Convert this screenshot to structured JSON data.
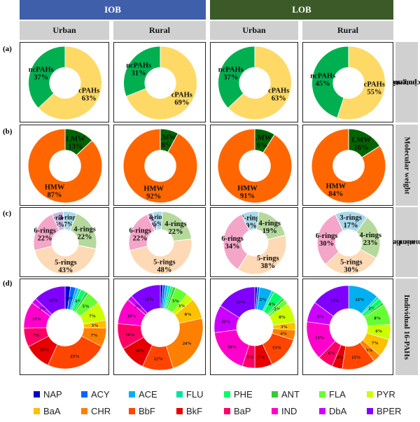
{
  "headers": {
    "iob": "IOB",
    "lob": "LOB",
    "urban": "Urban",
    "rural": "Rural"
  },
  "row_labels": [
    "(a)",
    "(b)",
    "(c)",
    "(d)"
  ],
  "side_labels": [
    [
      "Carcinogenic",
      "potential"
    ],
    [
      "Molecular weight"
    ],
    [
      "Aromatic ring",
      "number"
    ],
    [
      "Individual 16-PAHs"
    ]
  ],
  "colors": {
    "iob_header": "#3f5fab",
    "lob_header": "#3b5a28",
    "subheader": "#d0d0d0",
    "ncPAHs": "#00b050",
    "cPAHs": "#ffd966",
    "LMW": "#006400",
    "HMW": "#ff6600",
    "2-rings": "#c6b7e2",
    "3-rings": "#a8d8ea",
    "4-rings": "#b5d99c",
    "5-rings": "#fdd9b5",
    "6-rings": "#f4a6c8"
  },
  "legend": [
    {
      "name": "NAP",
      "color": "#0000cc"
    },
    {
      "name": "ACY",
      "color": "#0066ff"
    },
    {
      "name": "ACE",
      "color": "#00b0f0"
    },
    {
      "name": "FLU",
      "color": "#00e5a0"
    },
    {
      "name": "PHE",
      "color": "#00ff66"
    },
    {
      "name": "ANT",
      "color": "#33cc33"
    },
    {
      "name": "FLA",
      "color": "#66ff33"
    },
    {
      "name": "PYR",
      "color": "#ccff00"
    },
    {
      "name": "BaA",
      "color": "#ffc000"
    },
    {
      "name": "CHR",
      "color": "#ff7f00"
    },
    {
      "name": "BbF",
      "color": "#ff4500"
    },
    {
      "name": "BkF",
      "color": "#e60000"
    },
    {
      "name": "BaP",
      "color": "#ff0066"
    },
    {
      "name": "IND",
      "color": "#ff00cc"
    },
    {
      "name": "DbA",
      "color": "#cc00ff"
    },
    {
      "name": "BPER",
      "color": "#7f00ff"
    }
  ],
  "chart_data": [
    {
      "type": "donut",
      "row": "(a)",
      "group": "IOB",
      "site": "Urban",
      "slices": [
        {
          "name": "cPAHs",
          "value": 63,
          "label": "63%"
        },
        {
          "name": "ncPAHs",
          "value": 37,
          "label": "37%"
        }
      ]
    },
    {
      "type": "donut",
      "row": "(a)",
      "group": "IOB",
      "site": "Rural",
      "slices": [
        {
          "name": "cPAHs",
          "value": 69,
          "label": "69%"
        },
        {
          "name": "ncPAHs",
          "value": 31,
          "label": "31%"
        }
      ]
    },
    {
      "type": "donut",
      "row": "(a)",
      "group": "LOB",
      "site": "Urban",
      "slices": [
        {
          "name": "cPAHs",
          "value": 63,
          "label": "63%"
        },
        {
          "name": "ncPAHs",
          "value": 37,
          "label": "37%"
        }
      ]
    },
    {
      "type": "donut",
      "row": "(a)",
      "group": "LOB",
      "site": "Rural",
      "slices": [
        {
          "name": "cPAHs",
          "value": 55,
          "label": "55%"
        },
        {
          "name": "ncPAHs",
          "value": 45,
          "label": "45%"
        }
      ]
    },
    {
      "type": "donut",
      "row": "(b)",
      "group": "IOB",
      "site": "Urban",
      "slices": [
        {
          "name": "LMW",
          "value": 13,
          "label": "13%"
        },
        {
          "name": "HMW",
          "value": 87,
          "label": "87%"
        }
      ]
    },
    {
      "type": "donut",
      "row": "(b)",
      "group": "IOB",
      "site": "Rural",
      "slices": [
        {
          "name": "LMW",
          "value": 8,
          "label": "8%"
        },
        {
          "name": "HMW",
          "value": 92,
          "label": "92%"
        }
      ]
    },
    {
      "type": "donut",
      "row": "(b)",
      "group": "LOB",
      "site": "Urban",
      "slices": [
        {
          "name": "LMW",
          "value": 9,
          "label": "9%"
        },
        {
          "name": "HMW",
          "value": 91,
          "label": "91%"
        }
      ]
    },
    {
      "type": "donut",
      "row": "(b)",
      "group": "LOB",
      "site": "Rural",
      "slices": [
        {
          "name": "LMW",
          "value": 16,
          "label": "16%"
        },
        {
          "name": "HMW",
          "value": 84,
          "label": "84%"
        }
      ]
    },
    {
      "type": "donut",
      "row": "(c)",
      "group": "IOB",
      "site": "Urban",
      "slices": [
        {
          "name": "2-rings",
          "value": 6,
          "label": "6%"
        },
        {
          "name": "3-rings",
          "value": 7,
          "label": "7%"
        },
        {
          "name": "4-rings",
          "value": 22,
          "label": "22%"
        },
        {
          "name": "5-rings",
          "value": 43,
          "label": "43%"
        },
        {
          "name": "6-rings",
          "value": 22,
          "label": "22%"
        }
      ]
    },
    {
      "type": "donut",
      "row": "(c)",
      "group": "IOB",
      "site": "Rural",
      "slices": [
        {
          "name": "2-rings",
          "value": 3,
          "label": "3%"
        },
        {
          "name": "3-rings",
          "value": 5,
          "label": "5%"
        },
        {
          "name": "4-rings",
          "value": 22,
          "label": "22%"
        },
        {
          "name": "5-rings",
          "value": 48,
          "label": "48%"
        },
        {
          "name": "6-rings",
          "value": 22,
          "label": "22%"
        }
      ]
    },
    {
      "type": "donut",
      "row": "(c)",
      "group": "LOB",
      "site": "Urban",
      "slices": [
        {
          "name": "3-rings",
          "value": 9,
          "label": "9%"
        },
        {
          "name": "4-rings",
          "value": 19,
          "label": "19%"
        },
        {
          "name": "5-rings",
          "value": 38,
          "label": "38%"
        },
        {
          "name": "6-rings",
          "value": 34,
          "label": "34%"
        }
      ]
    },
    {
      "type": "donut",
      "row": "(c)",
      "group": "LOB",
      "site": "Rural",
      "slices": [
        {
          "name": "3-rings",
          "value": 17,
          "label": "17%"
        },
        {
          "name": "4-rings",
          "value": 23,
          "label": "23%"
        },
        {
          "name": "5-rings",
          "value": 30,
          "label": "30%"
        },
        {
          "name": "6-rings",
          "value": 30,
          "label": "30%"
        }
      ]
    },
    {
      "type": "donut",
      "row": "(d)",
      "group": "IOB",
      "site": "Urban",
      "slices": [
        {
          "name": "NAP",
          "value": 2,
          "label": "2%"
        },
        {
          "name": "ACY",
          "value": 2,
          "label": "2%"
        },
        {
          "name": "ACE",
          "value": 1,
          "label": "1%"
        },
        {
          "name": "FLU",
          "value": 1,
          "label": "1%"
        },
        {
          "name": "PHE",
          "value": 2,
          "label": "2%"
        },
        {
          "name": "ANT",
          "value": 1,
          "label": "1%"
        },
        {
          "name": "FLA",
          "value": 5,
          "label": "5%"
        },
        {
          "name": "PYR",
          "value": 7,
          "label": "7%"
        },
        {
          "name": "BaA",
          "value": 3,
          "label": "3%"
        },
        {
          "name": "CHR",
          "value": 7,
          "label": "7%"
        },
        {
          "name": "BbF",
          "value": 23,
          "label": "23%"
        },
        {
          "name": "BkF",
          "value": 10,
          "label": "10%"
        },
        {
          "name": "BaP",
          "value": 7,
          "label": "7%"
        },
        {
          "name": "IND",
          "value": 10,
          "label": "10%"
        },
        {
          "name": "DbA",
          "value": 2,
          "label": "2%"
        },
        {
          "name": "BPER",
          "value": 12,
          "label": "12%"
        }
      ]
    },
    {
      "type": "donut",
      "row": "(d)",
      "group": "IOB",
      "site": "Rural",
      "slices": [
        {
          "name": "NAP",
          "value": 1,
          "label": "1%"
        },
        {
          "name": "ACY",
          "value": 1,
          "label": "1%"
        },
        {
          "name": "ACE",
          "value": 1,
          "label": "1%"
        },
        {
          "name": "FLU",
          "value": 1,
          "label": "1%"
        },
        {
          "name": "PHE",
          "value": 1,
          "label": "1%"
        },
        {
          "name": "ANT",
          "value": 1,
          "label": "1%"
        },
        {
          "name": "FLA",
          "value": 5,
          "label": "5%"
        },
        {
          "name": "PYR",
          "value": 3,
          "label": "3%"
        },
        {
          "name": "BaA",
          "value": 8,
          "label": "8%"
        },
        {
          "name": "CHR",
          "value": 24,
          "label": "24%"
        },
        {
          "name": "BbF",
          "value": 12,
          "label": "12%"
        },
        {
          "name": "BkF",
          "value": 10,
          "label": "10%"
        },
        {
          "name": "BaP",
          "value": 10,
          "label": "10%"
        },
        {
          "name": "IND",
          "value": 10,
          "label": "10%"
        },
        {
          "name": "DbA",
          "value": 2,
          "label": "2%"
        },
        {
          "name": "BPER",
          "value": 12,
          "label": "12%"
        }
      ]
    },
    {
      "type": "donut",
      "row": "(d)",
      "group": "LOB",
      "site": "Urban",
      "slices": [
        {
          "name": "NAP",
          "value": 1,
          "label": "1%"
        },
        {
          "name": "ACY",
          "value": 1,
          "label": "1%"
        },
        {
          "name": "ACE",
          "value": 5,
          "label": "5%"
        },
        {
          "name": "FLU",
          "value": 1,
          "label": "1%"
        },
        {
          "name": "PHE",
          "value": 4,
          "label": "4%"
        },
        {
          "name": "ANT",
          "value": 1,
          "label": "1%"
        },
        {
          "name": "FLA",
          "value": 2,
          "label": "2%"
        },
        {
          "name": "PYR",
          "value": 8,
          "label": "8%"
        },
        {
          "name": "BaA",
          "value": 3,
          "label": "3%"
        },
        {
          "name": "CHR",
          "value": 4,
          "label": "4%"
        },
        {
          "name": "BbF",
          "value": 13,
          "label": "13%"
        },
        {
          "name": "BkF",
          "value": 7,
          "label": "7%"
        },
        {
          "name": "BaP",
          "value": 5,
          "label": "5%"
        },
        {
          "name": "IND",
          "value": 18,
          "label": "18%"
        },
        {
          "name": "DbA",
          "value": 11,
          "label": "11%"
        },
        {
          "name": "BPER",
          "value": 16,
          "label": "16%"
        }
      ]
    },
    {
      "type": "donut",
      "row": "(d)",
      "group": "LOB",
      "site": "Rural",
      "slices": [
        {
          "name": "ACE",
          "value": 12,
          "label": "12%"
        },
        {
          "name": "FLU",
          "value": 1,
          "label": "1%"
        },
        {
          "name": "PHE",
          "value": 2,
          "label": "2%"
        },
        {
          "name": "ANT",
          "value": 1,
          "label": "1%"
        },
        {
          "name": "FLA",
          "value": 8,
          "label": "8%"
        },
        {
          "name": "PYR",
          "value": 6,
          "label": "6%"
        },
        {
          "name": "BaA",
          "value": 7,
          "label": "7%"
        },
        {
          "name": "CHR",
          "value": 3,
          "label": "3%"
        },
        {
          "name": "BbF",
          "value": 13,
          "label": "13%"
        },
        {
          "name": "BkF",
          "value": 4,
          "label": "4%"
        },
        {
          "name": "BaP",
          "value": 6,
          "label": "6%"
        },
        {
          "name": "IND",
          "value": 15,
          "label": "15%"
        },
        {
          "name": "DbA",
          "value": 8,
          "label": "8%"
        },
        {
          "name": "BPER",
          "value": 15,
          "label": "15%"
        }
      ]
    }
  ]
}
